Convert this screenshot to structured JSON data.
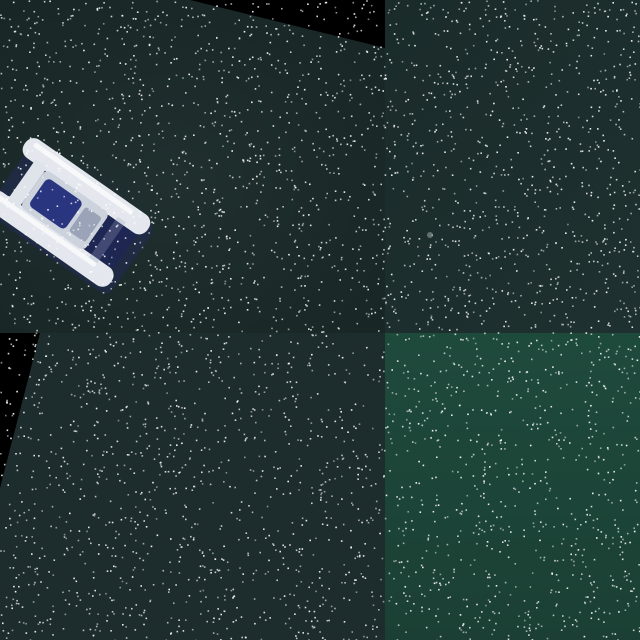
{
  "colors": {
    "water_top_left": "#1c2c2b",
    "water_top_right": "#1b2d2c",
    "water_bottom_left": "#1d2c2e",
    "water_bottom_right": "#1b4437",
    "no_data_black": "#000000",
    "boat_hull": "#e9ecef",
    "boat_cabin": "#2a3580",
    "boat_shadow": "#202a55",
    "speckle": "#ffffff"
  },
  "icons": {
    "boat": "catamaran-icon"
  }
}
